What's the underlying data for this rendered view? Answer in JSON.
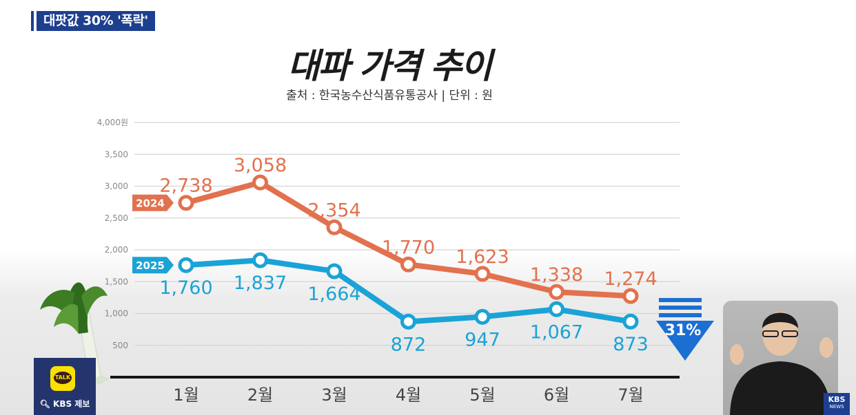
{
  "header": {
    "badge": "대팟값 30% '폭락'"
  },
  "chart_data": {
    "type": "line",
    "title": "대파 가격 추이",
    "subtitle": "출처 : 한국농수산식품유통공사  |  단위 : 원",
    "categories": [
      "1월",
      "2월",
      "3월",
      "4월",
      "5월",
      "6월",
      "7월"
    ],
    "y_ticks": [
      "4,000원",
      "3,500",
      "3,000",
      "2,500",
      "2,000",
      "1,500",
      "1,000",
      "500"
    ],
    "ylim": [
      0,
      4000
    ],
    "grid": true,
    "series": [
      {
        "name": "2024",
        "color": "#e2714e",
        "values": [
          2738,
          3058,
          2354,
          1770,
          1623,
          1338,
          1274
        ],
        "labels": [
          "2,738",
          "3,058",
          "2,354",
          "1,770",
          "1,623",
          "1,338",
          "1,274"
        ]
      },
      {
        "name": "2025",
        "color": "#1aa3d6",
        "values": [
          1760,
          1837,
          1664,
          872,
          947,
          1067,
          873
        ],
        "labels": [
          "1,760",
          "1,837",
          "1,664",
          "872",
          "947",
          "1,067",
          "873"
        ]
      }
    ],
    "annotation": {
      "text": "31%",
      "color": "#1b6fd1",
      "direction": "down"
    }
  },
  "overlay": {
    "kakao_logo_text": "TALK",
    "kakao_label": "KBS 제보",
    "kbs_logo_line1": "KBS",
    "kbs_logo_line2": "NEWS"
  }
}
